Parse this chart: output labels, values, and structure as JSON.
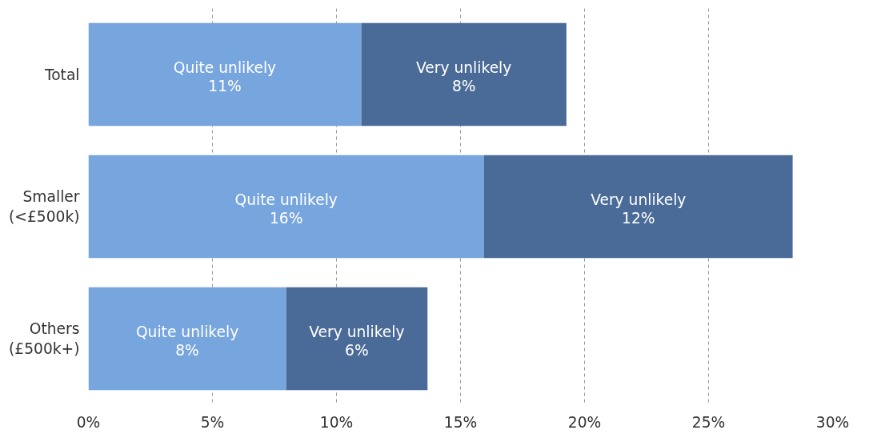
{
  "chart_data": {
    "type": "bar",
    "orientation": "horizontal",
    "stacked": true,
    "categories": [
      "Total",
      "Smaller\n(<£500k)",
      "Others\n(£500k+)"
    ],
    "series": [
      {
        "name": "Quite unlikely",
        "color": "#77a5dd",
        "values": [
          11.0,
          15.95,
          7.97
        ],
        "value_labels": [
          "11%",
          "16%",
          "8%"
        ]
      },
      {
        "name": "Very unlikely",
        "color": "#4a6b97",
        "values": [
          8.27,
          12.44,
          5.7
        ],
        "value_labels": [
          "8%",
          "12%",
          "6%"
        ]
      }
    ],
    "xlim": [
      0,
      30
    ],
    "xticks": [
      {
        "value": 0,
        "label": "0%"
      },
      {
        "value": 5,
        "label": "5%"
      },
      {
        "value": 10,
        "label": "10%"
      },
      {
        "value": 15,
        "label": "15%"
      },
      {
        "value": 20,
        "label": "20%"
      },
      {
        "value": 25,
        "label": "25%"
      },
      {
        "value": 30,
        "label": "30%"
      }
    ],
    "grid": "x"
  }
}
